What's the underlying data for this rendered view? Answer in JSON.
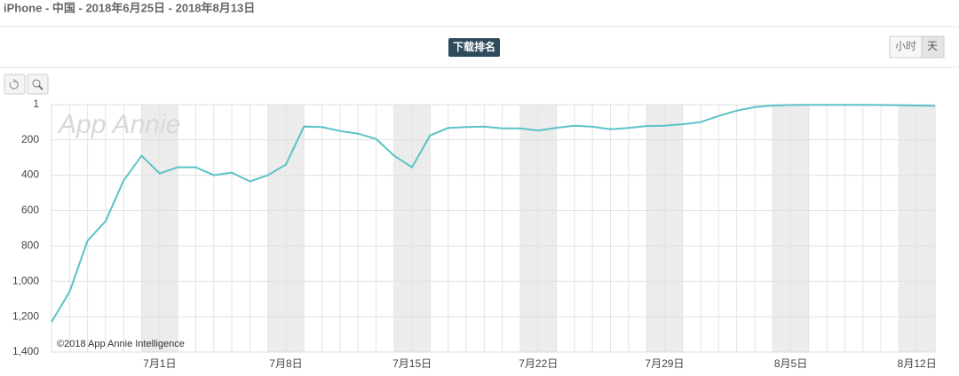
{
  "header": {
    "title": "iPhone - 中国 - 2018年6月25日 - 2018年8月13日",
    "metric_button": "下载排名",
    "toggle": [
      "小时",
      "天"
    ]
  },
  "chart_data": {
    "type": "line",
    "watermark": "App Annie",
    "copyright": "©2018 App Annie Intelligence",
    "categories": [
      null,
      null,
      null,
      null,
      null,
      null,
      "7月1日",
      null,
      null,
      null,
      null,
      null,
      null,
      "7月8日",
      null,
      null,
      null,
      null,
      null,
      null,
      "7月15日",
      null,
      null,
      null,
      null,
      null,
      null,
      "7月22日",
      null,
      null,
      null,
      null,
      null,
      null,
      "7月29日",
      null,
      null,
      null,
      null,
      null,
      null,
      "8月5日",
      null,
      null,
      null,
      null,
      null,
      null,
      "8月12日",
      null
    ],
    "series": [
      {
        "name": "下载排名",
        "color": "#5bc2c7",
        "values": [
          1230,
          1060,
          770,
          660,
          430,
          290,
          390,
          355,
          355,
          400,
          385,
          435,
          400,
          340,
          125,
          128,
          150,
          165,
          195,
          290,
          355,
          175,
          133,
          128,
          125,
          135,
          135,
          148,
          132,
          120,
          126,
          140,
          133,
          122,
          120,
          112,
          100,
          65,
          35,
          15,
          6,
          3,
          2,
          2,
          2,
          2,
          3,
          4,
          6,
          8
        ]
      }
    ],
    "ylim": [
      1,
      1400
    ],
    "y_inverted": true,
    "yticks": [
      1,
      200,
      400,
      600,
      800,
      {
        "value": 1000,
        "label": "1,000"
      },
      {
        "value": 1200,
        "label": "1,200"
      },
      {
        "value": 1400,
        "label": "1,400"
      }
    ],
    "grid": true
  }
}
